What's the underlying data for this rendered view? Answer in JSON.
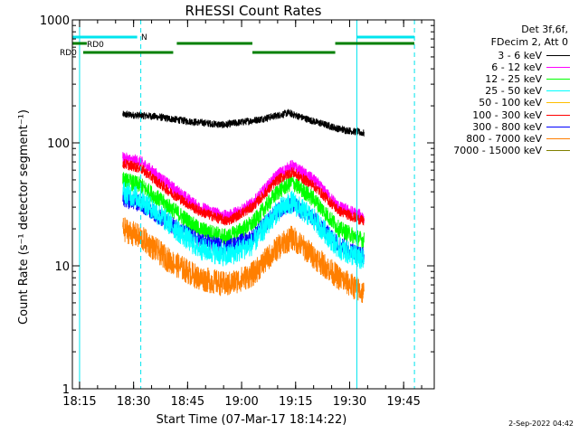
{
  "chart_data": {
    "type": "line",
    "title": "RHESSI Count Rates",
    "xlabel": "Start Time (07-Mar-17 18:14:22)",
    "ylabel": "Count Rate (s⁻¹ detector segment⁻¹)",
    "yscale": "log",
    "xlim": [
      "18:13:00",
      "19:53:30"
    ],
    "ylim": [
      1,
      1000
    ],
    "x_ticks": [
      "18:15",
      "18:30",
      "18:45",
      "19:00",
      "19:15",
      "19:30",
      "19:45"
    ],
    "y_ticks": [
      "1",
      "10",
      "100",
      "1000"
    ],
    "legend_header": [
      "Det 3f,6f,",
      "FDecim 2, Att 0"
    ],
    "legend_placement": "right",
    "series": [
      {
        "name": "3 - 6 keV",
        "color": "#000000",
        "time": [
          "18:27",
          "18:35",
          "18:45",
          "18:55",
          "19:05",
          "19:13",
          "19:20",
          "19:27",
          "19:34"
        ],
        "values": [
          170,
          165,
          150,
          140,
          155,
          175,
          150,
          130,
          120
        ]
      },
      {
        "name": "6 - 12 keV",
        "color": "#ff00ff",
        "time": [
          "18:27",
          "18:32",
          "18:40",
          "18:48",
          "18:56",
          "19:03",
          "19:10",
          "19:14",
          "19:20",
          "19:27",
          "19:34"
        ],
        "values": [
          75,
          70,
          45,
          30,
          25,
          32,
          55,
          65,
          50,
          30,
          25
        ]
      },
      {
        "name": "12 - 25 keV",
        "color": "#00ff00",
        "time": [
          "18:27",
          "18:32",
          "18:40",
          "18:48",
          "18:56",
          "19:03",
          "19:10",
          "19:14",
          "19:20",
          "19:27",
          "19:34"
        ],
        "values": [
          50,
          45,
          30,
          20,
          17,
          22,
          40,
          48,
          35,
          20,
          16
        ]
      },
      {
        "name": "25 - 50 keV",
        "color": "#00ffff",
        "time": [
          "18:27",
          "18:32",
          "18:40",
          "18:48",
          "18:56",
          "19:03",
          "19:10",
          "19:14",
          "19:20",
          "19:27",
          "19:34"
        ],
        "values": [
          40,
          35,
          22,
          14,
          12,
          15,
          28,
          33,
          24,
          14,
          11
        ]
      },
      {
        "name": "50 - 100 keV",
        "color": "#ffbf00",
        "time": [],
        "values": []
      },
      {
        "name": "100 - 300 keV",
        "color": "#ff0000",
        "time": [
          "18:27",
          "18:32",
          "18:40",
          "18:48",
          "18:56",
          "19:03",
          "19:10",
          "19:14",
          "19:20",
          "19:27",
          "19:34"
        ],
        "values": [
          68,
          62,
          40,
          28,
          23,
          30,
          50,
          58,
          45,
          28,
          23
        ]
      },
      {
        "name": "300 - 800 keV",
        "color": "#0000ff",
        "time": [
          "18:27",
          "18:32",
          "18:40",
          "18:48",
          "18:56",
          "19:03",
          "19:10",
          "19:14",
          "19:20",
          "19:27",
          "19:34"
        ],
        "values": [
          35,
          32,
          22,
          16,
          14,
          17,
          28,
          32,
          24,
          15,
          12
        ]
      },
      {
        "name": "800 - 7000 keV",
        "color": "#ff7f00",
        "time": [
          "18:27",
          "18:32",
          "18:40",
          "18:48",
          "18:56",
          "19:03",
          "19:10",
          "19:14",
          "19:20",
          "19:27",
          "19:34"
        ],
        "values": [
          20,
          17,
          11,
          8,
          7,
          8.5,
          14,
          17,
          12,
          8,
          6
        ]
      },
      {
        "name": "7000 - 15000 keV",
        "color": "#808000",
        "time": [],
        "values": []
      }
    ],
    "annotation_labels": {
      "night": "N",
      "rd0_top": "RD0",
      "rd0_bottom": "RD0"
    },
    "annotation_colors": {
      "night": "#00e5ee",
      "rd0": "#008000"
    },
    "night_bars": [
      [
        "18:13",
        "18:31"
      ],
      [
        "19:32",
        "19:50"
      ]
    ],
    "rd0_upper_bars": [
      [
        "18:13",
        "18:17"
      ],
      [
        "18:42",
        "19:03"
      ],
      [
        "19:26",
        "19:50"
      ]
    ],
    "rd0_lower_bars": [
      [
        "18:16",
        "18:41"
      ],
      [
        "19:03",
        "19:26"
      ]
    ],
    "vertical_solid": [
      "18:15",
      "19:32"
    ],
    "vertical_dashed": [
      "18:32",
      "19:48"
    ]
  },
  "footer": {
    "timestamp": "2-Sep-2022 04:42"
  }
}
